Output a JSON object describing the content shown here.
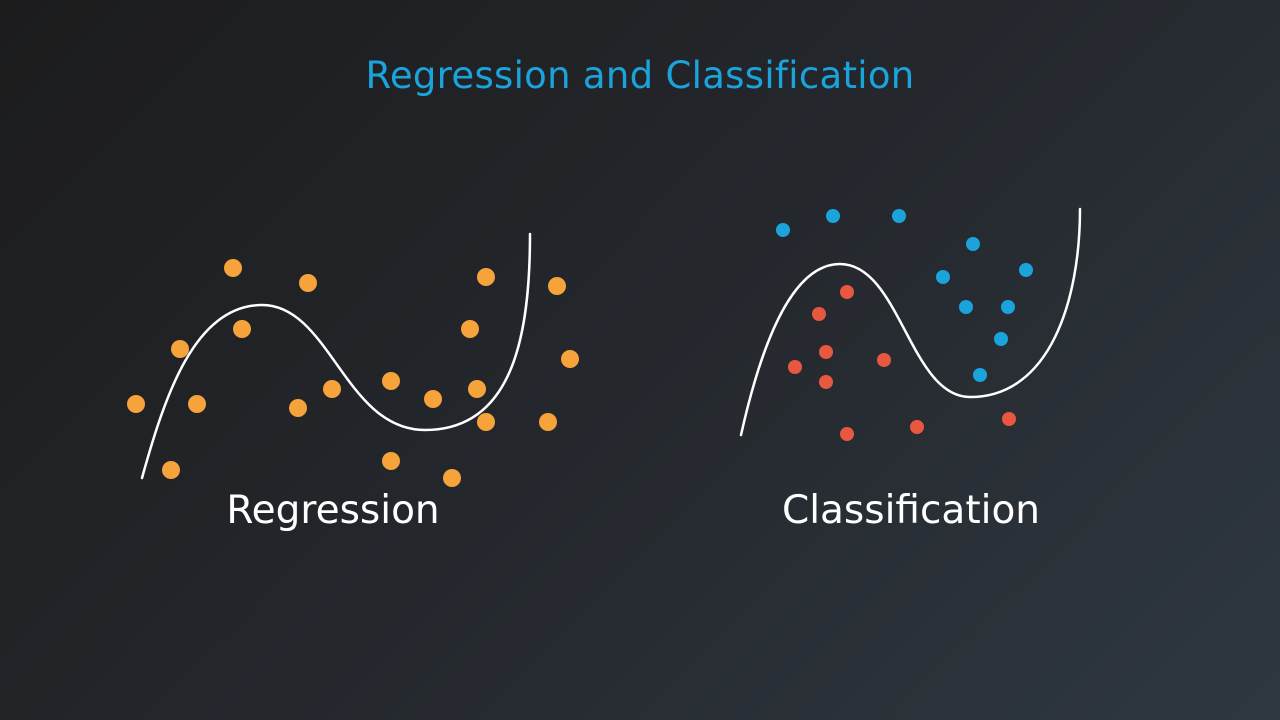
{
  "title": "Regression and Classification",
  "panels": {
    "regression": {
      "label": "Regression"
    },
    "classification": {
      "label": "Classification"
    }
  },
  "colors": {
    "title": "#1ba3dc",
    "regression_points": "#f5a33a",
    "class_a_points": "#1ba3dc",
    "class_b_points": "#e8573f",
    "curve": "#ffffff",
    "label": "#ffffff"
  }
}
